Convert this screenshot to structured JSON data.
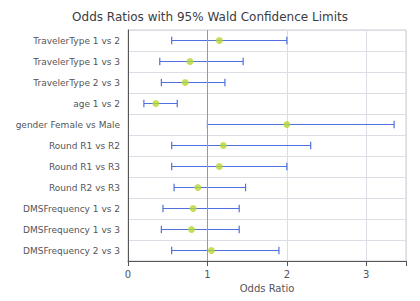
{
  "chart_data": {
    "type": "scatter",
    "orientation": "horizontal",
    "title": "Odds Ratios with 95% Wald Confidence Limits",
    "xlabel": "Odds Ratio",
    "categories": [
      "TravelerType 1 vs 2",
      "TravelerType 1 vs 3",
      "TravelerType 2 vs 3",
      "age 1 vs 2",
      "gender Female vs Male",
      "Round R1 vs R2",
      "Round R1 vs R3",
      "Round R2 vs R3",
      "DMSFrequency 1 vs 2",
      "DMSFrequency 1 vs 3",
      "DMSFrequency 2 vs 3"
    ],
    "values": [
      1.15,
      0.78,
      0.72,
      0.35,
      2.0,
      1.2,
      1.15,
      0.88,
      0.82,
      0.8,
      1.05
    ],
    "ci_lower": [
      0.55,
      0.4,
      0.42,
      0.2,
      1.0,
      0.55,
      0.55,
      0.58,
      0.44,
      0.42,
      0.55
    ],
    "ci_upper": [
      2.0,
      1.45,
      1.22,
      0.62,
      3.35,
      2.3,
      2.0,
      1.48,
      1.4,
      1.4,
      1.9
    ],
    "reference_line": 1,
    "xlim": [
      0,
      3.5
    ],
    "xticks": [
      0,
      1,
      2,
      3
    ],
    "grid": true
  }
}
